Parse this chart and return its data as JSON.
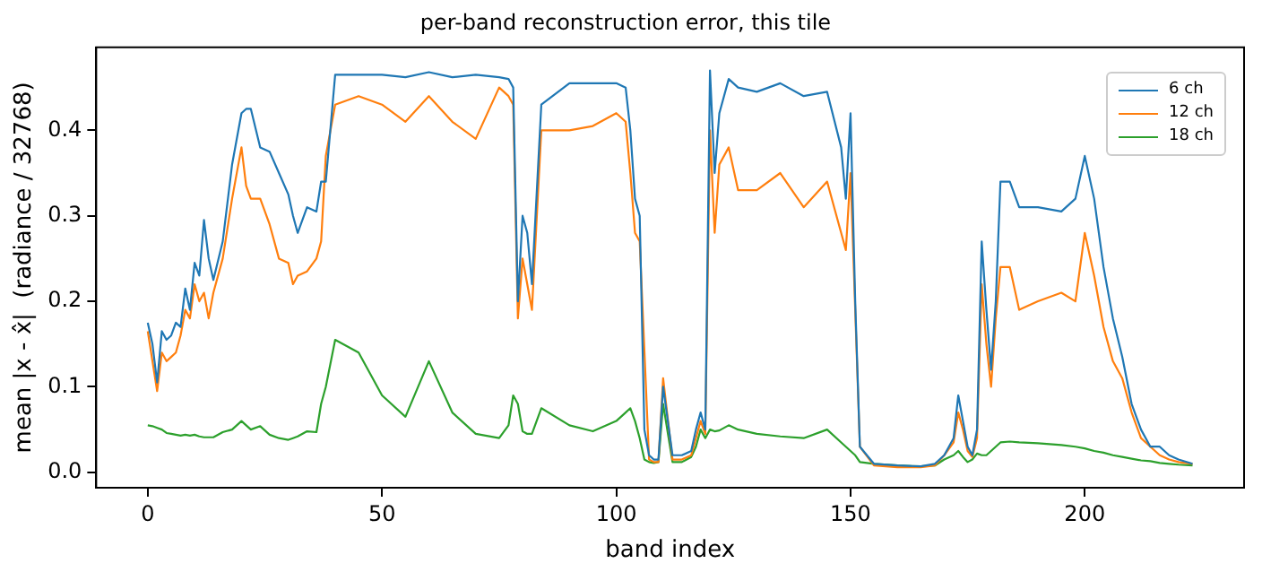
{
  "chart_data": {
    "type": "line",
    "title": "per-band reconstruction error, this tile",
    "xlabel": "band index",
    "ylabel": "mean |x - x̂|  (radiance / 32768)",
    "x": [
      0,
      1,
      2,
      3,
      4,
      5,
      6,
      7,
      8,
      9,
      10,
      11,
      12,
      13,
      14,
      16,
      18,
      20,
      21,
      22,
      24,
      26,
      28,
      30,
      31,
      32,
      34,
      36,
      37,
      38,
      40,
      45,
      50,
      55,
      60,
      65,
      70,
      75,
      77,
      78,
      79,
      80,
      81,
      82,
      84,
      90,
      95,
      100,
      102,
      103,
      104,
      105,
      106,
      107,
      108,
      109,
      110,
      112,
      114,
      116,
      117,
      118,
      119,
      120,
      121,
      122,
      124,
      126,
      130,
      135,
      140,
      145,
      148,
      149,
      150,
      151,
      152,
      155,
      160,
      165,
      168,
      170,
      172,
      173,
      174,
      175,
      176,
      177,
      178,
      179,
      180,
      181,
      182,
      184,
      186,
      190,
      195,
      198,
      200,
      202,
      204,
      206,
      208,
      210,
      212,
      214,
      216,
      218,
      220,
      223
    ],
    "series": [
      {
        "name": "6 ch",
        "color": "#1f77b4",
        "values": [
          0.175,
          0.15,
          0.105,
          0.165,
          0.155,
          0.16,
          0.175,
          0.17,
          0.215,
          0.19,
          0.245,
          0.23,
          0.295,
          0.25,
          0.225,
          0.27,
          0.36,
          0.42,
          0.425,
          0.425,
          0.38,
          0.375,
          0.35,
          0.325,
          0.3,
          0.28,
          0.31,
          0.305,
          0.34,
          0.34,
          0.465,
          0.465,
          0.465,
          0.462,
          0.468,
          0.462,
          0.465,
          0.462,
          0.46,
          0.45,
          0.2,
          0.3,
          0.28,
          0.22,
          0.43,
          0.455,
          0.455,
          0.455,
          0.45,
          0.4,
          0.32,
          0.3,
          0.05,
          0.02,
          0.015,
          0.015,
          0.1,
          0.02,
          0.02,
          0.025,
          0.05,
          0.07,
          0.05,
          0.47,
          0.35,
          0.42,
          0.46,
          0.45,
          0.445,
          0.455,
          0.44,
          0.445,
          0.38,
          0.32,
          0.42,
          0.2,
          0.03,
          0.01,
          0.008,
          0.007,
          0.01,
          0.02,
          0.04,
          0.09,
          0.06,
          0.03,
          0.02,
          0.05,
          0.27,
          0.19,
          0.12,
          0.2,
          0.34,
          0.34,
          0.31,
          0.31,
          0.305,
          0.32,
          0.37,
          0.32,
          0.24,
          0.18,
          0.135,
          0.08,
          0.05,
          0.03,
          0.03,
          0.02,
          0.015,
          0.01
        ]
      },
      {
        "name": "12 ch",
        "color": "#ff7f0e",
        "values": [
          0.165,
          0.13,
          0.095,
          0.14,
          0.13,
          0.135,
          0.14,
          0.16,
          0.19,
          0.18,
          0.22,
          0.2,
          0.21,
          0.18,
          0.21,
          0.25,
          0.32,
          0.38,
          0.335,
          0.32,
          0.32,
          0.29,
          0.25,
          0.245,
          0.22,
          0.23,
          0.235,
          0.25,
          0.27,
          0.37,
          0.43,
          0.44,
          0.43,
          0.41,
          0.44,
          0.41,
          0.39,
          0.45,
          0.44,
          0.43,
          0.18,
          0.25,
          0.22,
          0.19,
          0.4,
          0.4,
          0.405,
          0.42,
          0.41,
          0.35,
          0.28,
          0.27,
          null,
          0.015,
          0.012,
          0.012,
          0.11,
          0.015,
          0.015,
          0.02,
          0.04,
          0.06,
          0.045,
          0.4,
          0.28,
          0.36,
          0.38,
          0.33,
          0.33,
          0.35,
          0.31,
          0.34,
          0.28,
          0.26,
          0.35,
          null,
          0.03,
          0.008,
          0.006,
          0.006,
          0.008,
          0.02,
          0.035,
          0.07,
          0.05,
          0.025,
          0.018,
          0.04,
          0.22,
          0.15,
          0.1,
          0.18,
          0.24,
          0.24,
          0.19,
          0.2,
          0.21,
          0.2,
          0.28,
          0.23,
          0.17,
          0.13,
          0.11,
          0.07,
          0.04,
          0.03,
          0.02,
          0.015,
          0.012,
          0.01
        ]
      },
      {
        "name": "18 ch",
        "color": "#2ca02c",
        "values": [
          0.055,
          0.054,
          0.052,
          0.05,
          0.046,
          0.045,
          0.044,
          0.043,
          0.044,
          0.043,
          0.044,
          0.042,
          0.041,
          0.041,
          0.041,
          0.047,
          0.05,
          0.06,
          0.055,
          0.05,
          0.054,
          0.044,
          0.04,
          0.038,
          0.04,
          0.042,
          0.048,
          0.047,
          0.08,
          0.1,
          0.155,
          0.14,
          0.09,
          0.065,
          0.13,
          0.07,
          0.045,
          0.04,
          0.055,
          0.09,
          0.08,
          0.048,
          0.045,
          0.045,
          0.075,
          0.055,
          0.048,
          0.06,
          0.07,
          0.075,
          0.06,
          0.04,
          0.015,
          0.012,
          0.011,
          0.012,
          0.08,
          0.012,
          0.012,
          0.018,
          0.03,
          0.05,
          0.04,
          0.05,
          0.048,
          0.049,
          0.055,
          0.05,
          0.045,
          0.042,
          0.04,
          0.05,
          0.035,
          0.03,
          0.025,
          0.02,
          0.012,
          0.01,
          0.008,
          0.007,
          0.008,
          0.015,
          0.02,
          0.025,
          0.018,
          0.012,
          0.015,
          0.022,
          0.02,
          0.02,
          0.025,
          0.03,
          0.035,
          0.036,
          0.035,
          0.034,
          0.032,
          0.03,
          0.028,
          0.025,
          0.023,
          0.02,
          0.018,
          0.016,
          0.014,
          0.013,
          0.011,
          0.01,
          0.009,
          0.008
        ]
      }
    ],
    "xlim": [
      -11,
      234
    ],
    "xticks": [
      0,
      50,
      100,
      150,
      200
    ],
    "ylim": [
      -0.018,
      0.497
    ],
    "yticks": [
      {
        "value": 0,
        "label": "0.0"
      },
      {
        "value": 0.1,
        "label": "0.1"
      },
      {
        "value": 0.2,
        "label": "0.2"
      },
      {
        "value": 0.3,
        "label": "0.3"
      },
      {
        "value": 0.4,
        "label": "0.4"
      }
    ],
    "legend": "top right",
    "grid": false,
    "marker": "none",
    "line_style": "solid"
  }
}
